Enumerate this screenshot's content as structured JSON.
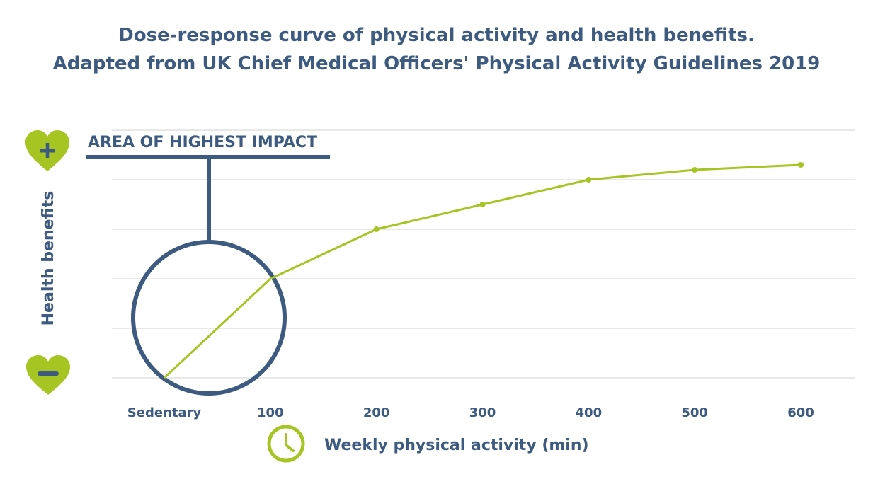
{
  "title": {
    "line1": "Dose-response curve of physical activity and health benefits.",
    "line2": "Adapted from UK Chief Medical Officers' Physical Activity Guidelines 2019"
  },
  "colors": {
    "primary": "#3d5a80",
    "accent": "#a6c523",
    "grid": "#d0d0d0"
  },
  "icons": {
    "positive": "heart-plus-icon",
    "negative": "heart-minus-icon",
    "time": "clock-icon"
  },
  "chart_data": {
    "type": "line",
    "title": "Dose-response curve of physical activity and health benefits.",
    "subtitle": "Adapted from UK Chief Medical Officers' Physical Activity Guidelines 2019",
    "xlabel": "Weekly physical activity (min)",
    "ylabel": "Health benefits",
    "x_ticks": [
      "Sedentary",
      "100",
      "200",
      "300",
      "400",
      "500",
      "600"
    ],
    "x_tick_values": [
      0,
      100,
      200,
      300,
      400,
      500,
      600
    ],
    "xlim": [
      0,
      600
    ],
    "ylim": [
      0,
      5
    ],
    "grid": true,
    "y_gridlines": [
      0,
      1,
      2,
      3,
      4,
      5
    ],
    "series": [
      {
        "name": "Health benefits",
        "x": [
          0,
          100,
          200,
          300,
          400,
          500,
          600
        ],
        "y": [
          0,
          2.0,
          3.0,
          3.5,
          4.0,
          4.2,
          4.3
        ]
      }
    ],
    "markers_at": [
      200,
      300,
      400,
      500,
      600
    ],
    "annotations": [
      {
        "label": "AREA OF HIGHEST IMPACT",
        "x_center": 50,
        "y_center": 1.2
      }
    ]
  }
}
